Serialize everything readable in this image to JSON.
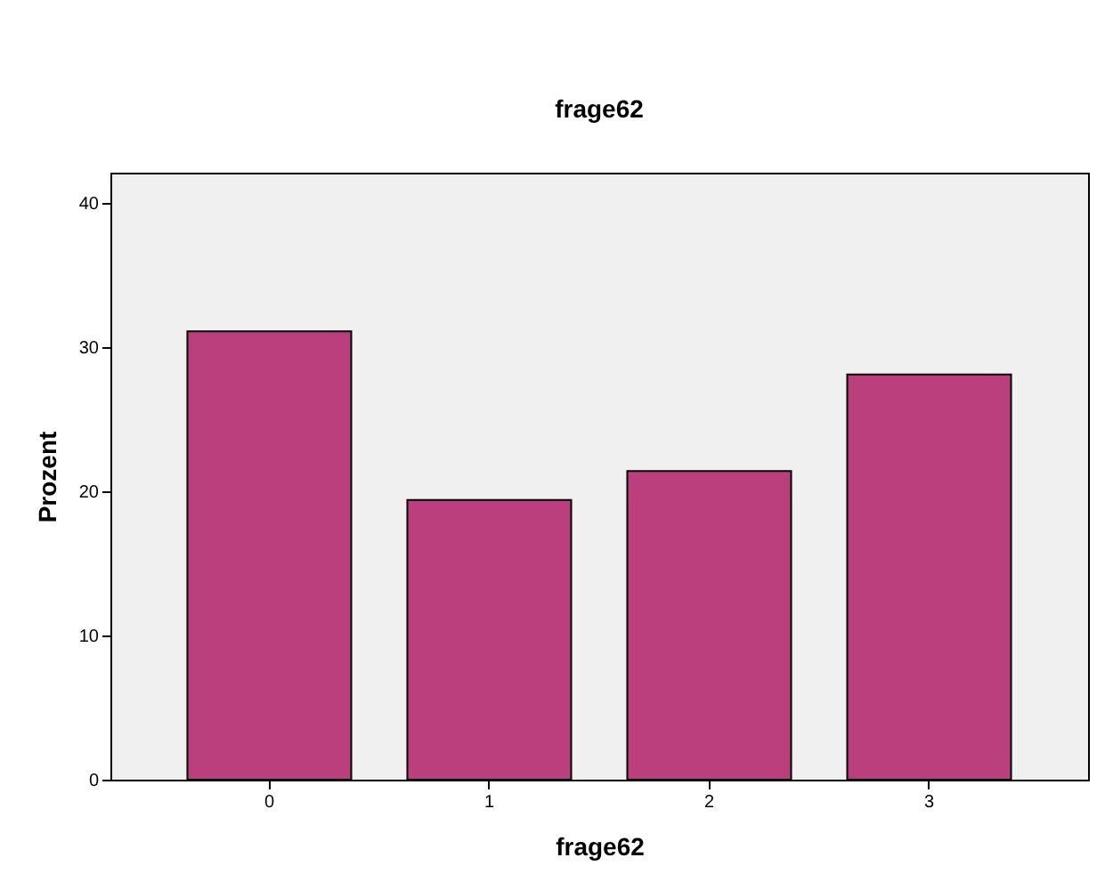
{
  "chart_data": {
    "type": "bar",
    "title": "frage62",
    "xlabel": "frage62",
    "ylabel": "Prozent",
    "categories": [
      "0",
      "1",
      "2",
      "3"
    ],
    "values": [
      31.1,
      19.4,
      21.4,
      28.1
    ],
    "color": "#bb3f7d",
    "ylim": [
      0,
      42.1
    ],
    "yticks": [
      0,
      10,
      20,
      30,
      40
    ],
    "grid": false
  }
}
